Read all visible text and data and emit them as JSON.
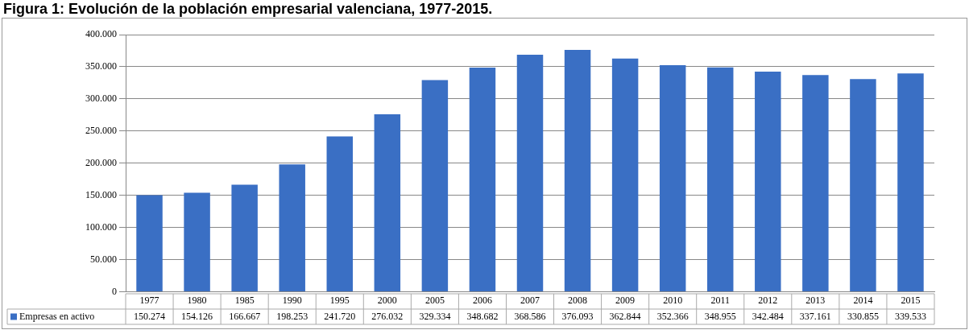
{
  "chart_data": {
    "type": "bar",
    "title": "Figura 1: Evolución de la población empresarial valenciana, 1977-2015.",
    "categories": [
      "1977",
      "1980",
      "1985",
      "1990",
      "1995",
      "2000",
      "2005",
      "2006",
      "2007",
      "2008",
      "2009",
      "2010",
      "2011",
      "2012",
      "2013",
      "2014",
      "2015"
    ],
    "series": [
      {
        "name": "Empresas en activo",
        "color": "#3a6fc4",
        "values": [
          150274,
          154126,
          166667,
          198253,
          241720,
          276032,
          329334,
          348682,
          368586,
          376093,
          362844,
          352366,
          348955,
          342484,
          337161,
          330855,
          339533
        ],
        "value_labels": [
          "150.274",
          "154.126",
          "166.667",
          "198.253",
          "241.720",
          "276.032",
          "329.334",
          "348.682",
          "368.586",
          "376.093",
          "362.844",
          "352.366",
          "348.955",
          "342.484",
          "337.161",
          "330.855",
          "339.533"
        ]
      }
    ],
    "ylim": [
      0,
      400000
    ],
    "yticks": [
      {
        "value": 0,
        "label": "0"
      },
      {
        "value": 50000,
        "label": "50.000"
      },
      {
        "value": 100000,
        "label": "100.000"
      },
      {
        "value": 150000,
        "label": "150.000"
      },
      {
        "value": 200000,
        "label": "200.000"
      },
      {
        "value": 250000,
        "label": "250.000"
      },
      {
        "value": 300000,
        "label": "300.000"
      },
      {
        "value": 350000,
        "label": "350.000"
      },
      {
        "value": 400000,
        "label": "400.000"
      }
    ],
    "grid": "y",
    "legend": "bottom"
  }
}
